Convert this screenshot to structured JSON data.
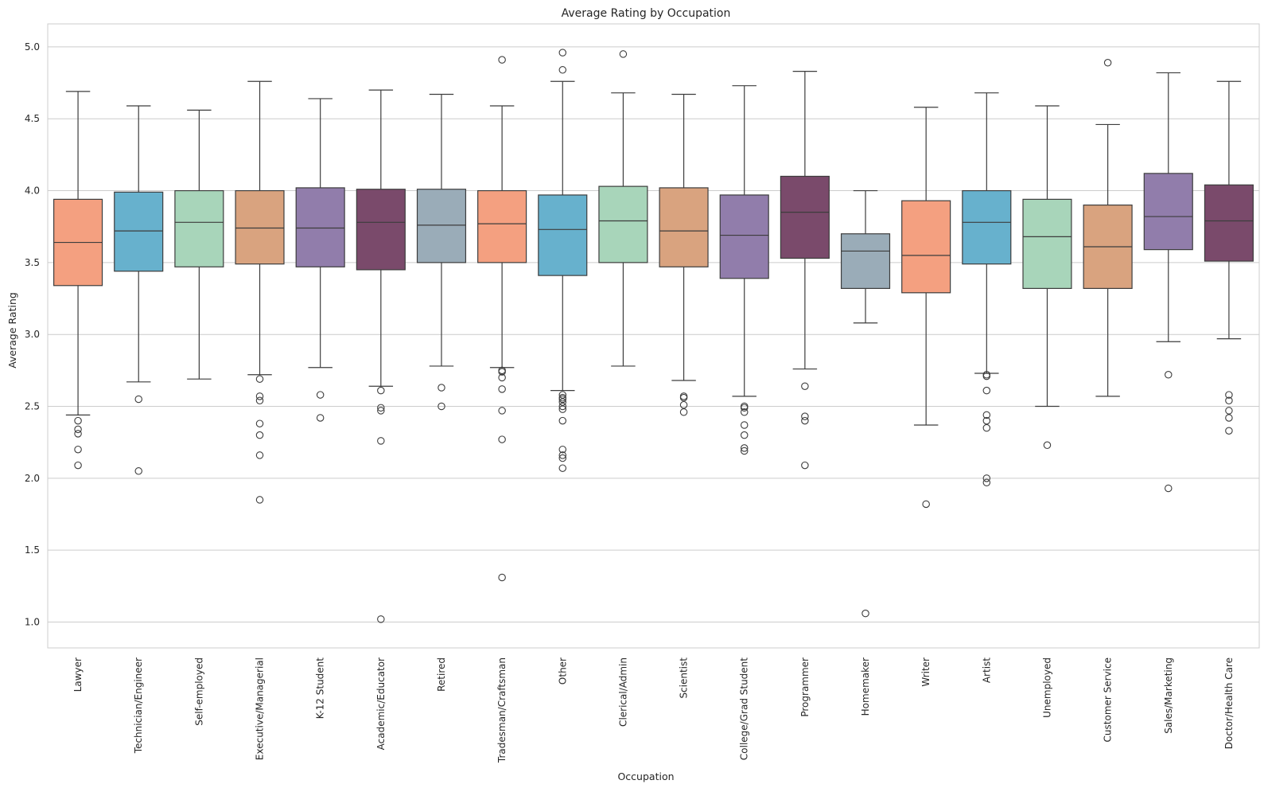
{
  "chart_data": {
    "type": "box",
    "title": "Average Rating by Occupation",
    "xlabel": "Occupation",
    "ylabel": "Average Rating",
    "ylim": [
      0.82,
      5.16
    ],
    "yticks": [
      "1.0",
      "1.5",
      "2.0",
      "2.5",
      "3.0",
      "3.5",
      "4.0",
      "4.5",
      "5.0"
    ],
    "grid": "horizontal",
    "palette": [
      "#F4A080",
      "#67B1CD",
      "#A8D5BA",
      "#D9A37F",
      "#917DAB",
      "#7A4A6B",
      "#9AACB8"
    ],
    "categories": [
      "Lawyer",
      "Technician/Engineer",
      "Self-employed",
      "Executive/Managerial",
      "K-12 Student",
      "Academic/Educator",
      "Retired",
      "Tradesman/Craftsman",
      "Other",
      "Clerical/Admin",
      "Scientist",
      "College/Grad Student",
      "Programmer",
      "Homemaker",
      "Writer",
      "Artist",
      "Unemployed",
      "Customer Service",
      "Sales/Marketing",
      "Doctor/Health Care"
    ],
    "boxes": [
      {
        "category": "Lawyer",
        "whisker_low": 2.44,
        "q1": 3.34,
        "median": 3.64,
        "q3": 3.94,
        "whisker_high": 4.69,
        "outliers": [
          2.4,
          2.34,
          2.31,
          2.2,
          2.09
        ]
      },
      {
        "category": "Technician/Engineer",
        "whisker_low": 2.67,
        "q1": 3.44,
        "median": 3.72,
        "q3": 3.99,
        "whisker_high": 4.59,
        "outliers": [
          2.55,
          2.05
        ]
      },
      {
        "category": "Self-employed",
        "whisker_low": 2.69,
        "q1": 3.47,
        "median": 3.78,
        "q3": 4.0,
        "whisker_high": 4.56,
        "outliers": []
      },
      {
        "category": "Executive/Managerial",
        "whisker_low": 2.72,
        "q1": 3.49,
        "median": 3.74,
        "q3": 4.0,
        "whisker_high": 4.76,
        "outliers": [
          2.69,
          2.57,
          2.54,
          2.38,
          2.3,
          2.16,
          1.85
        ]
      },
      {
        "category": "K-12 Student",
        "whisker_low": 2.77,
        "q1": 3.47,
        "median": 3.74,
        "q3": 4.02,
        "whisker_high": 4.64,
        "outliers": [
          2.58,
          2.42
        ]
      },
      {
        "category": "Academic/Educator",
        "whisker_low": 2.64,
        "q1": 3.45,
        "median": 3.78,
        "q3": 4.01,
        "whisker_high": 4.7,
        "outliers": [
          2.61,
          2.49,
          2.47,
          2.26,
          1.02
        ]
      },
      {
        "category": "Retired",
        "whisker_low": 2.78,
        "q1": 3.5,
        "median": 3.76,
        "q3": 4.01,
        "whisker_high": 4.67,
        "outliers": [
          2.63,
          2.5
        ]
      },
      {
        "category": "Tradesman/Craftsman",
        "whisker_low": 2.77,
        "q1": 3.5,
        "median": 3.77,
        "q3": 4.0,
        "whisker_high": 4.59,
        "outliers": [
          4.91,
          2.75,
          2.74,
          2.7,
          2.62,
          2.47,
          2.27,
          1.31
        ]
      },
      {
        "category": "Other",
        "whisker_low": 2.61,
        "q1": 3.41,
        "median": 3.73,
        "q3": 3.97,
        "whisker_high": 4.76,
        "outliers": [
          4.96,
          4.84,
          2.58,
          2.56,
          2.55,
          2.53,
          2.5,
          2.48,
          2.4,
          2.2,
          2.16,
          2.14,
          2.07
        ]
      },
      {
        "category": "Clerical/Admin",
        "whisker_low": 2.78,
        "q1": 3.5,
        "median": 3.79,
        "q3": 4.03,
        "whisker_high": 4.68,
        "outliers": [
          4.95
        ]
      },
      {
        "category": "Scientist",
        "whisker_low": 2.68,
        "q1": 3.47,
        "median": 3.72,
        "q3": 4.02,
        "whisker_high": 4.67,
        "outliers": [
          2.57,
          2.56,
          2.51,
          2.46
        ]
      },
      {
        "category": "College/Grad Student",
        "whisker_low": 2.57,
        "q1": 3.39,
        "median": 3.69,
        "q3": 3.97,
        "whisker_high": 4.73,
        "outliers": [
          2.5,
          2.49,
          2.46,
          2.37,
          2.3,
          2.21,
          2.19
        ]
      },
      {
        "category": "Programmer",
        "whisker_low": 2.76,
        "q1": 3.53,
        "median": 3.85,
        "q3": 4.1,
        "whisker_high": 4.83,
        "outliers": [
          2.64,
          2.43,
          2.4,
          2.09
        ]
      },
      {
        "category": "Homemaker",
        "whisker_low": 3.08,
        "q1": 3.32,
        "median": 3.58,
        "q3": 3.7,
        "whisker_high": 4.0,
        "outliers": [
          1.06
        ]
      },
      {
        "category": "Writer",
        "whisker_low": 2.37,
        "q1": 3.29,
        "median": 3.55,
        "q3": 3.93,
        "whisker_high": 4.58,
        "outliers": [
          1.82
        ]
      },
      {
        "category": "Artist",
        "whisker_low": 2.73,
        "q1": 3.49,
        "median": 3.78,
        "q3": 4.0,
        "whisker_high": 4.68,
        "outliers": [
          2.72,
          2.71,
          2.61,
          2.44,
          2.4,
          2.35,
          2.0,
          1.97
        ]
      },
      {
        "category": "Unemployed",
        "whisker_low": 2.5,
        "q1": 3.32,
        "median": 3.68,
        "q3": 3.94,
        "whisker_high": 4.59,
        "outliers": [
          2.23
        ]
      },
      {
        "category": "Customer Service",
        "whisker_low": 2.57,
        "q1": 3.32,
        "median": 3.61,
        "q3": 3.9,
        "whisker_high": 4.46,
        "outliers": [
          4.89
        ]
      },
      {
        "category": "Sales/Marketing",
        "whisker_low": 2.95,
        "q1": 3.59,
        "median": 3.82,
        "q3": 4.12,
        "whisker_high": 4.82,
        "outliers": [
          2.72,
          1.93
        ]
      },
      {
        "category": "Doctor/Health Care",
        "whisker_low": 2.97,
        "q1": 3.51,
        "median": 3.79,
        "q3": 4.04,
        "whisker_high": 4.76,
        "outliers": [
          2.58,
          2.54,
          2.47,
          2.42,
          2.33
        ]
      }
    ]
  }
}
